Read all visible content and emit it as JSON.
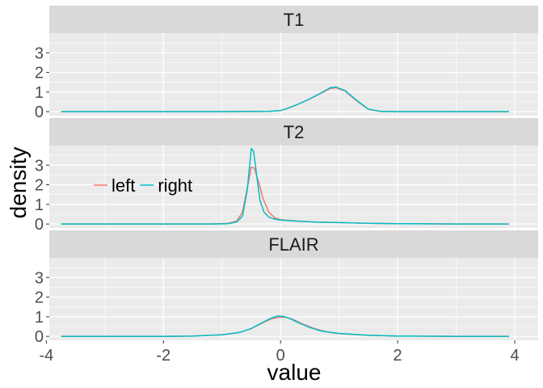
{
  "chart_data": {
    "type": "line",
    "xlabel": "value",
    "ylabel": "density",
    "xlim": [
      -3.95,
      4.4
    ],
    "ylim": [
      -0.2,
      4.0
    ],
    "x_ticks": [
      -4,
      -2,
      0,
      2,
      4
    ],
    "x_tick_labels": [
      "-4",
      "-2",
      "0",
      "2",
      "4"
    ],
    "y_ticks": [
      0,
      1,
      2,
      3
    ],
    "y_tick_labels": [
      "0",
      "1",
      "2",
      "3"
    ],
    "grid": true,
    "legend": {
      "placement": "inside-left (T2 panel)",
      "entries": [
        {
          "label": "left",
          "color": "#F8766D"
        },
        {
          "label": "right",
          "color": "#00BFC4"
        }
      ]
    },
    "colors": {
      "panel_background": "#EBEBEB",
      "strip_background": "#D9D9D9",
      "grid": "#FFFFFF",
      "left": "#F8766D",
      "right": "#00BFC4"
    },
    "panels": [
      {
        "label": "T1",
        "series": [
          {
            "name": "left",
            "x": [
              -3.75,
              -2.0,
              -1.0,
              -0.5,
              -0.2,
              0.0,
              0.1,
              0.3,
              0.5,
              0.7,
              0.85,
              0.95,
              1.1,
              1.3,
              1.5,
              1.7,
              2.0,
              3.0,
              3.9
            ],
            "y": [
              0,
              0,
              0,
              0.01,
              0.02,
              0.06,
              0.15,
              0.38,
              0.65,
              0.95,
              1.18,
              1.22,
              1.05,
              0.55,
              0.12,
              0.02,
              0,
              0,
              0
            ]
          },
          {
            "name": "right",
            "x": [
              -3.75,
              -2.0,
              -1.0,
              -0.5,
              -0.2,
              0.0,
              0.1,
              0.3,
              0.5,
              0.7,
              0.85,
              0.95,
              1.1,
              1.3,
              1.5,
              1.7,
              2.0,
              3.0,
              3.9
            ],
            "y": [
              0,
              0,
              0,
              0.01,
              0.02,
              0.06,
              0.14,
              0.38,
              0.65,
              0.97,
              1.22,
              1.25,
              1.08,
              0.58,
              0.13,
              0.02,
              0,
              0,
              0
            ]
          }
        ]
      },
      {
        "label": "T2",
        "series": [
          {
            "name": "left",
            "x": [
              -3.75,
              -1.2,
              -0.9,
              -0.75,
              -0.65,
              -0.55,
              -0.5,
              -0.45,
              -0.38,
              -0.3,
              -0.2,
              -0.1,
              0.0,
              0.3,
              0.6,
              1.0,
              1.5,
              2.0,
              3.0,
              3.9
            ],
            "y": [
              0,
              0,
              0.03,
              0.15,
              0.6,
              2.1,
              2.9,
              2.85,
              2.2,
              1.3,
              0.6,
              0.32,
              0.22,
              0.15,
              0.1,
              0.07,
              0.04,
              0.02,
              0,
              0
            ]
          },
          {
            "name": "right",
            "x": [
              -3.75,
              -1.2,
              -0.9,
              -0.75,
              -0.65,
              -0.57,
              -0.5,
              -0.46,
              -0.4,
              -0.35,
              -0.28,
              -0.2,
              -0.1,
              0.0,
              0.3,
              0.6,
              1.0,
              1.5,
              2.0,
              3.0,
              3.9
            ],
            "y": [
              0,
              0,
              0.02,
              0.1,
              0.4,
              1.7,
              3.85,
              3.7,
              2.3,
              1.2,
              0.6,
              0.35,
              0.25,
              0.2,
              0.14,
              0.1,
              0.07,
              0.04,
              0.02,
              0,
              0
            ]
          }
        ]
      },
      {
        "label": "FLAIR",
        "series": [
          {
            "name": "left",
            "x": [
              -3.75,
              -2.0,
              -1.5,
              -1.0,
              -0.7,
              -0.5,
              -0.3,
              -0.15,
              0.0,
              0.1,
              0.2,
              0.4,
              0.6,
              0.8,
              1.0,
              1.5,
              2.0,
              3.0,
              3.9
            ],
            "y": [
              0,
              0,
              0.02,
              0.08,
              0.2,
              0.4,
              0.7,
              0.9,
              0.98,
              0.97,
              0.88,
              0.6,
              0.38,
              0.22,
              0.14,
              0.05,
              0.02,
              0,
              0
            ]
          },
          {
            "name": "right",
            "x": [
              -3.75,
              -2.0,
              -1.5,
              -1.0,
              -0.7,
              -0.5,
              -0.3,
              -0.15,
              -0.05,
              0.05,
              0.15,
              0.3,
              0.5,
              0.7,
              1.0,
              1.5,
              2.0,
              3.0,
              3.9
            ],
            "y": [
              0,
              0,
              0.02,
              0.08,
              0.2,
              0.4,
              0.72,
              0.95,
              1.04,
              1.02,
              0.92,
              0.7,
              0.45,
              0.27,
              0.15,
              0.06,
              0.02,
              0,
              0
            ]
          }
        ]
      }
    ]
  }
}
